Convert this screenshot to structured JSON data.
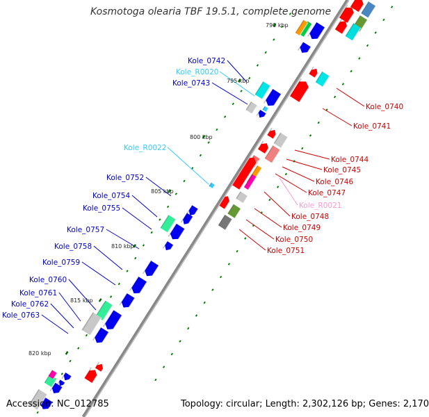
{
  "header": {
    "title": "Kosmotoga olearia TBF 19.5.1, complete genome"
  },
  "footer": {
    "accession": "Accession: NC_012785",
    "summary": "Topology: circular; Length: 2,302,126 bp; Genes: 2,170"
  },
  "colors": {
    "backbone": "#808080",
    "plus_strand_gene": "#0000ff",
    "minus_strand_gene": "#ff0000",
    "cds": "#ff0000",
    "rna_label": "#33ccff",
    "tick": "#008000"
  },
  "kbp_ticks": [
    {
      "label": "790 kbp"
    },
    {
      "label": "795 kbp"
    },
    {
      "label": "800 kbp"
    },
    {
      "label": "805 kbp"
    },
    {
      "label": "810 kbp"
    },
    {
      "label": "815 kbp"
    },
    {
      "label": "820 kbp"
    }
  ],
  "gene_labels_left": [
    {
      "label": "Kole_0742",
      "color": "#0000cc"
    },
    {
      "label": "Kole_R0020",
      "color": "#33ccff"
    },
    {
      "label": "Kole_0743",
      "color": "#0000cc"
    },
    {
      "label": "Kole_R0022",
      "color": "#33ccff"
    },
    {
      "label": "Kole_0752",
      "color": "#0000cc"
    },
    {
      "label": "Kole_0754",
      "color": "#0000cc"
    },
    {
      "label": "Kole_0755",
      "color": "#0000cc"
    },
    {
      "label": "Kole_0757",
      "color": "#0000cc"
    },
    {
      "label": "Kole_0758",
      "color": "#0000cc"
    },
    {
      "label": "Kole_0759",
      "color": "#0000cc"
    },
    {
      "label": "Kole_0760",
      "color": "#0000cc"
    },
    {
      "label": "Kole_0761",
      "color": "#0000cc"
    },
    {
      "label": "Kole_0762",
      "color": "#0000cc"
    },
    {
      "label": "Kole_0763",
      "color": "#0000cc"
    }
  ],
  "gene_labels_right": [
    {
      "label": "Kole_0740",
      "color": "#cc0000"
    },
    {
      "label": "Kole_0741",
      "color": "#cc0000"
    },
    {
      "label": "Kole_0744",
      "color": "#cc0000"
    },
    {
      "label": "Kole_0745",
      "color": "#cc0000"
    },
    {
      "label": "Kole_0746",
      "color": "#cc0000"
    },
    {
      "label": "Kole_0747",
      "color": "#cc0000"
    },
    {
      "label": "Kole_R0021",
      "color": "#ff99cc"
    },
    {
      "label": "Kole_0748",
      "color": "#cc0000"
    },
    {
      "label": "Kole_0749",
      "color": "#cc0000"
    },
    {
      "label": "Kole_0750",
      "color": "#cc0000"
    },
    {
      "label": "Kole_0751",
      "color": "#cc0000"
    }
  ]
}
